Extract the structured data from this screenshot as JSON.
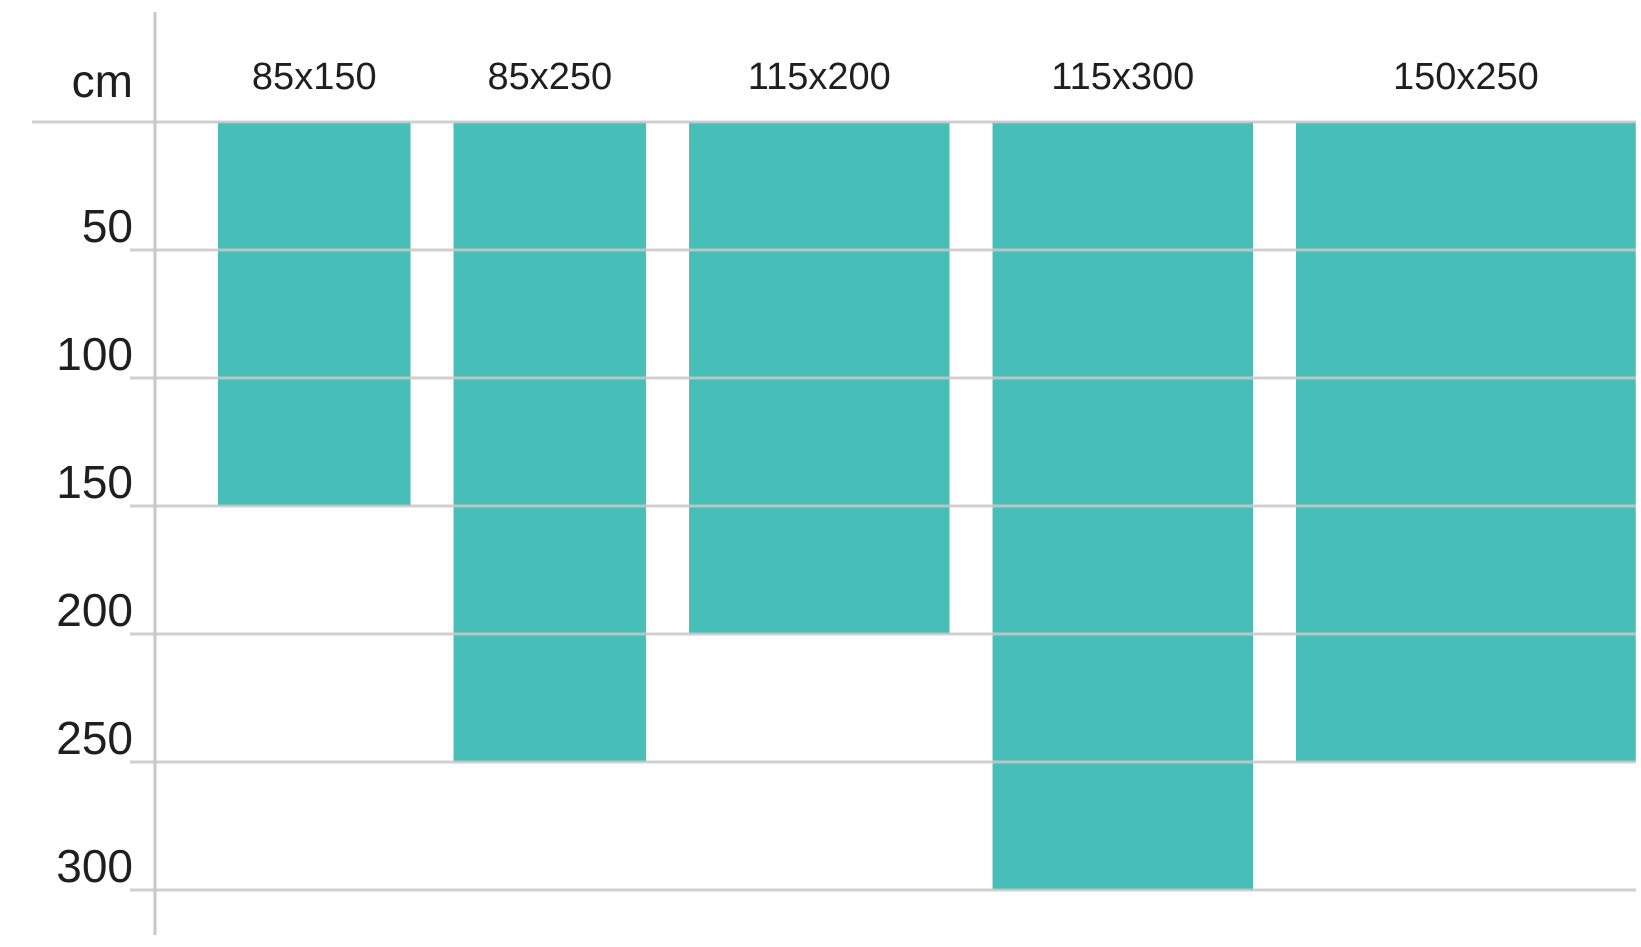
{
  "chart_data": {
    "type": "bar",
    "orientation": "vertical-hanging",
    "unit_label": "cm",
    "categories": [
      "85x150",
      "85x250",
      "115x200",
      "115x300",
      "150x250"
    ],
    "widths": [
      85,
      85,
      115,
      115,
      150
    ],
    "values": [
      150,
      250,
      200,
      300,
      250
    ],
    "y_ticks": [
      50,
      100,
      150,
      200,
      250,
      300
    ],
    "ylim": [
      0,
      300
    ],
    "grid": true,
    "bar_color": "#47bfb8",
    "grid_color": "#c8c8c8"
  }
}
